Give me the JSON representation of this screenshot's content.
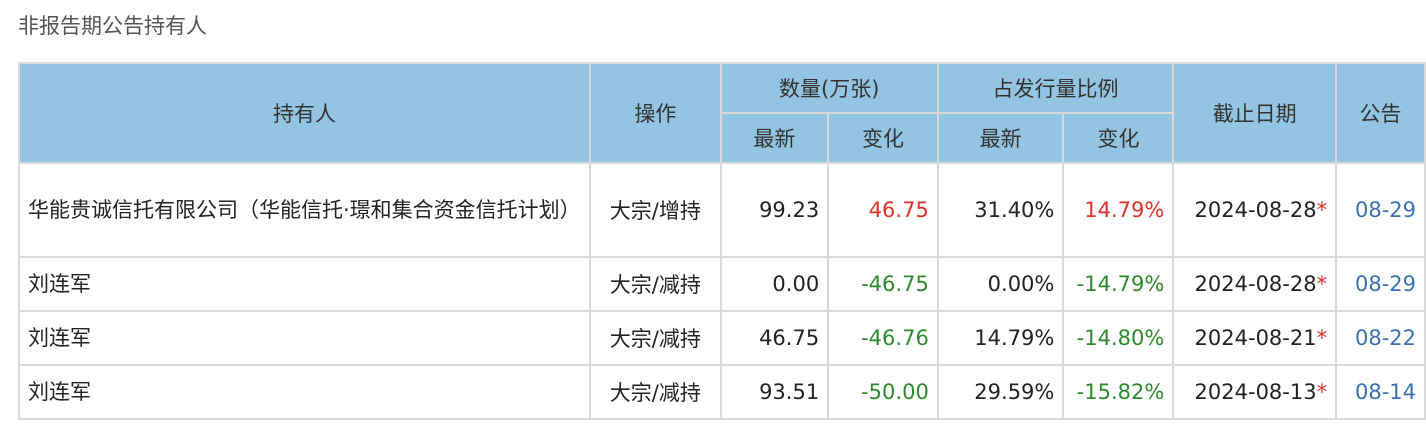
{
  "title": "非报告期公告持有人",
  "headers": {
    "holder": "持有人",
    "action": "操作",
    "quantity": "数量(万张)",
    "ratio": "占发行量比例",
    "latest": "最新",
    "change": "变化",
    "date": "截止日期",
    "notice": "公告"
  },
  "rows": [
    {
      "holder": "华能贵诚信托有限公司（华能信托·璟和集合资金信托计划）",
      "action": "大宗/增持",
      "qty": "99.23",
      "qty_change": "46.75",
      "ratio": "31.40%",
      "ratio_change": "14.79%",
      "date": "2024-08-28",
      "star": "*",
      "notice": "08-29",
      "dir": "up"
    },
    {
      "holder": "刘连军",
      "action": "大宗/减持",
      "qty": "0.00",
      "qty_change": "-46.75",
      "ratio": "0.00%",
      "ratio_change": "-14.79%",
      "date": "2024-08-28",
      "star": "*",
      "notice": "08-29",
      "dir": "down"
    },
    {
      "holder": "刘连军",
      "action": "大宗/减持",
      "qty": "46.75",
      "qty_change": "-46.76",
      "ratio": "14.79%",
      "ratio_change": "-14.80%",
      "date": "2024-08-21",
      "star": "*",
      "notice": "08-22",
      "dir": "down"
    },
    {
      "holder": "刘连军",
      "action": "大宗/减持",
      "qty": "93.51",
      "qty_change": "-50.00",
      "ratio": "29.59%",
      "ratio_change": "-15.82%",
      "date": "2024-08-13",
      "star": "*",
      "notice": "08-14",
      "dir": "down"
    }
  ],
  "colors": {
    "header_bg": "#93c4e1",
    "up": "#e0302a",
    "down": "#2c8a2c",
    "link": "#3a72b0"
  }
}
